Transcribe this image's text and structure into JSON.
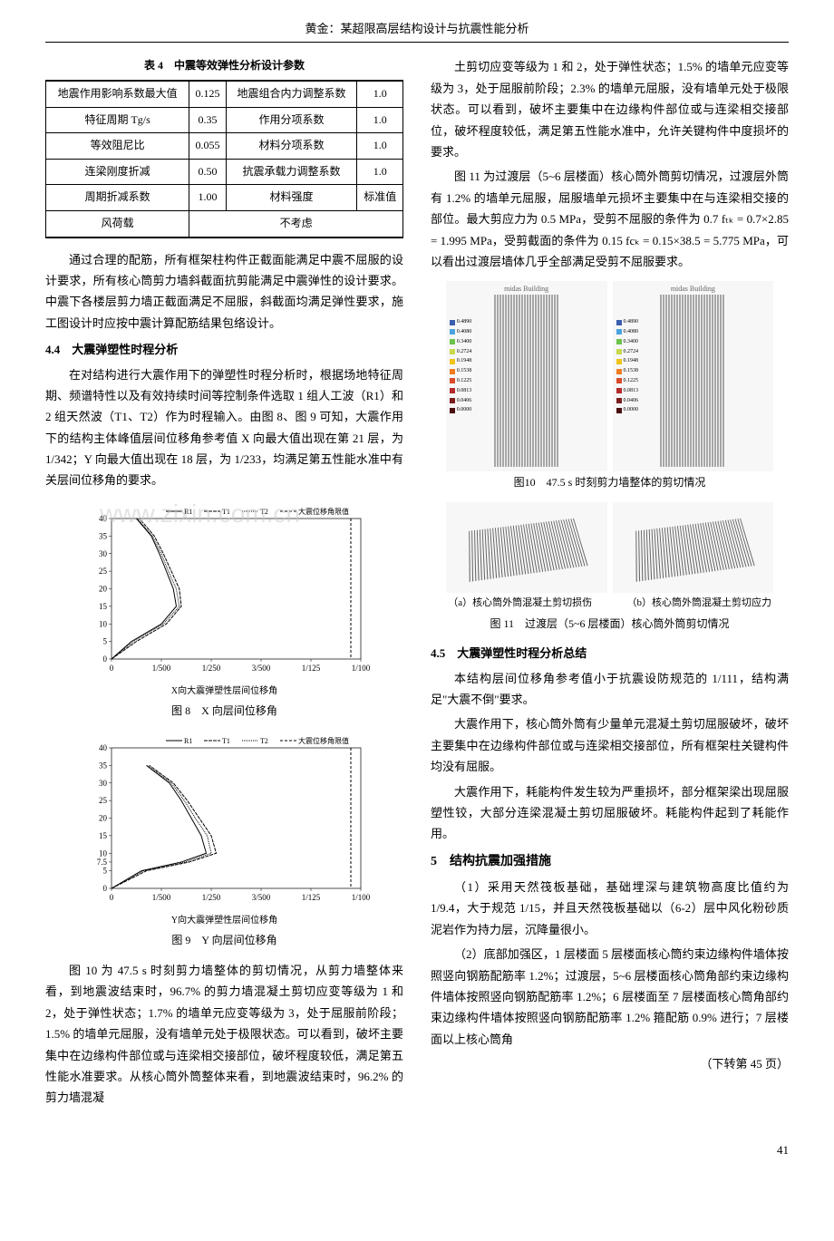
{
  "header": "黄金：某超限高层结构设计与抗震性能分析",
  "table4": {
    "caption": "表 4　中震等效弹性分析设计参数",
    "rows": [
      [
        "地震作用影响系数最大值",
        "0.125",
        "地震组合内力调整系数",
        "1.0"
      ],
      [
        "特征周期 Tg/s",
        "0.35",
        "作用分项系数",
        "1.0"
      ],
      [
        "等效阻尼比",
        "0.055",
        "材料分项系数",
        "1.0"
      ],
      [
        "连梁刚度折减",
        "0.50",
        "抗震承载力调整系数",
        "1.0"
      ],
      [
        "周期折减系数",
        "1.00",
        "材料强度",
        "标准值"
      ],
      [
        "风荷载",
        "",
        "不考虑",
        ""
      ]
    ]
  },
  "left_paras": {
    "p1": "通过合理的配筋，所有框架柱构件正截面能满足中震不屈服的设计要求，所有核心筒剪力墙斜截面抗剪能满足中震弹性的设计要求。中震下各楼层剪力墙正截面满足不屈服，斜截面均满足弹性要求，施工图设计时应按中震计算配筋结果包络设计。",
    "sec44": "4.4　大震弹塑性时程分析",
    "p2": "在对结构进行大震作用下的弹塑性时程分析时，根据场地特征周期、频谱特性以及有效持续时间等控制条件选取 1 组人工波（R1）和 2 组天然波（T1、T2）作为时程输入。由图 8、图 9 可知，大震作用下的结构主体峰值层间位移角参考值 X 向最大值出现在第 21 层，为 1/342；Y 向最大值出现在 18 层，为 1/233，均满足第五性能水准中有关层间位移角的要求。",
    "p3": "图 10 为 47.5 s 时刻剪力墙整体的剪切情况，从剪力墙整体来看，到地震波结束时，96.7% 的剪力墙混凝土剪切应变等级为 1 和 2，处于弹性状态；1.7% 的墙单元应变等级为 3，处于屈服前阶段；1.5% 的墙单元屈服，没有墙单元处于极限状态。可以看到，破坏主要集中在边缘构件部位或与连梁相交接部位，破坏程度较低，满足第五性能水准要求。从核心筒外筒整体来看，到地震波结束时，96.2% 的剪力墙混凝"
  },
  "right_paras": {
    "p1": "土剪切应变等级为 1 和 2，处于弹性状态；1.5% 的墙单元应变等级为 3，处于屈服前阶段；2.3% 的墙单元屈服，没有墙单元处于极限状态。可以看到，破坏主要集中在边缘构件部位或与连梁相交接部位，破坏程度较低，满足第五性能水准中，允许关键构件中度损坏的要求。",
    "p2": "图 11 为过渡层（5~6 层楼面）核心筒外筒剪切情况，过渡层外筒有 1.2% 的墙单元屈服，屈服墙单元损坏主要集中在与连梁相交接的部位。最大剪应力为 0.5 MPa，受剪不屈服的条件为 0.7 fₜₖ = 0.7×2.85 = 1.995 MPa，受剪截面的条件为 0.15 fcₖ = 0.15×38.5 = 5.775 MPa，可以看出过渡层墙体几乎全部满足受剪不屈服要求。",
    "fig10cap": "图10　47.5 s 时刻剪力墙整体的剪切情况",
    "fig11sub_a": "（a）核心筒外筒混凝土剪切损伤",
    "fig11sub_b": "（b）核心筒外筒混凝土剪切应力",
    "fig11cap": "图 11　过渡层（5~6 层楼面）核心筒外筒剪切情况",
    "sec45": "4.5　大震弹塑性时程分析总结",
    "p3": "本结构层间位移角参考值小于抗震设防规范的 1/111，结构满足\"大震不倒\"要求。",
    "p4": "大震作用下，核心筒外筒有少量单元混凝土剪切屈服破坏，破坏主要集中在边缘构件部位或与连梁相交接部位，所有框架柱关键构件均没有屈服。",
    "p5": "大震作用下，耗能构件发生较为严重损坏，部分框架梁出现屈服塑性铰，大部分连梁混凝土剪切屈服破坏。耗能构件起到了耗能作用。",
    "sec5": "5　结构抗震加强措施",
    "p6": "（1）采用天然筏板基础，基础埋深与建筑物高度比值约为 1/9.4，大于规范 1/15，并且天然筏板基础以（6-2）层中风化粉砂质泥岩作为持力层，沉降量很小。",
    "p7": "（2）底部加强区，1 层楼面 5 层楼面核心筒约束边缘构件墙体按照竖向钢筋配筋率 1.2%；过渡层，5~6 层楼面核心筒角部约束边缘构件墙体按照竖向钢筋配筋率 1.2%；6 层楼面至 7 层楼面核心筒角部约束边缘构件墙体按照竖向钢筋配筋率 1.2% 箍配筋 0.9% 进行；7 层楼面以上核心筒角",
    "cont": "（下转第 45 页）"
  },
  "fig8": {
    "caption": "图 8　X 向层间位移角",
    "xlabel": "X向大震弹塑性层间位移角",
    "legend": [
      "R1",
      "T1",
      "T2",
      "大震位移角限值"
    ],
    "xticks": [
      "0",
      "1/500",
      "1/250",
      "3/500",
      "1/125",
      "1/100"
    ],
    "yticks": [
      0,
      5,
      10,
      15,
      20,
      25,
      30,
      35,
      40
    ],
    "colors": {
      "R1": "#000",
      "T1": "#555",
      "T2": "#999",
      "limit": "#000"
    },
    "series": {
      "R1_x": [
        0,
        20,
        50,
        65,
        62,
        55,
        48,
        40,
        25
      ],
      "T1_x": [
        0,
        25,
        55,
        70,
        68,
        60,
        52,
        43,
        28
      ],
      "T2_x": [
        0,
        22,
        52,
        68,
        65,
        57,
        50,
        41,
        26
      ],
      "limit_x": 240
    }
  },
  "fig9": {
    "caption": "图 9　Y 向层间位移角",
    "xlabel": "Y向大震弹塑性层间位移角",
    "legend": [
      "R1",
      "T1",
      "T2",
      "大震位移角限值"
    ],
    "xticks": [
      "0",
      "1/500",
      "1/250",
      "3/500",
      "1/125",
      "1/100"
    ],
    "yticks": [
      0,
      5,
      7.5,
      10,
      15,
      20,
      25,
      30,
      35,
      40
    ],
    "colors": {
      "R1": "#000",
      "T1": "#555",
      "T2": "#999",
      "limit": "#000"
    },
    "series": {
      "R1_x": [
        0,
        30,
        70,
        95,
        90,
        80,
        70,
        58,
        35
      ],
      "T1_x": [
        0,
        35,
        78,
        105,
        100,
        88,
        76,
        62,
        38
      ],
      "T2_x": [
        0,
        32,
        74,
        100,
        96,
        84,
        73,
        60,
        36
      ],
      "limit_x": 240
    }
  },
  "legend_colors": [
    "#3a5fad",
    "#4aa3df",
    "#6cc24a",
    "#c7d94a",
    "#f0c419",
    "#ef7c21",
    "#d94b2b",
    "#b52a2a",
    "#7a1f1f",
    "#4a1010"
  ],
  "legend_values": [
    "0.4890",
    "0.4080",
    "0.3400",
    "0.2724",
    "0.1948",
    "0.1538",
    "0.1225",
    "0.0813",
    "0.0406",
    "0.0000"
  ],
  "watermark": "www.zixin.com.cn",
  "tower_label_a": "midas Building",
  "tower_label_b": "midas Building",
  "page_num": "41"
}
